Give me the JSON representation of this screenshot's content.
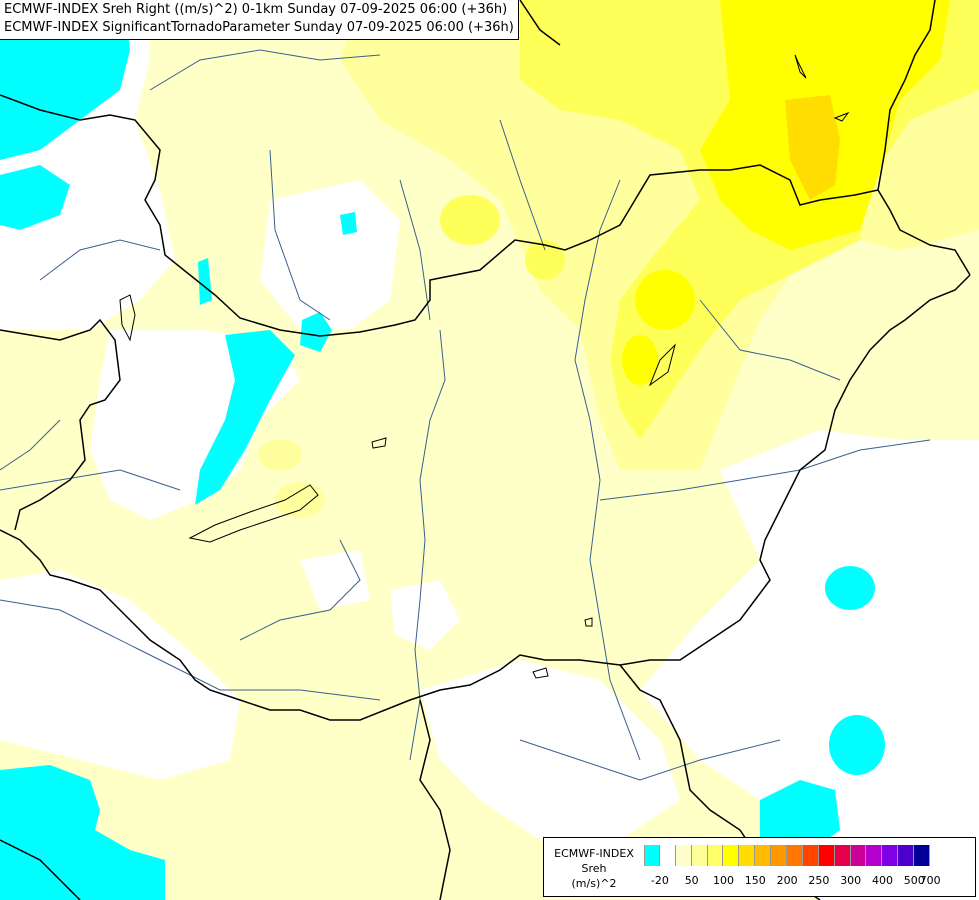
{
  "titles": {
    "line1": "ECMWF-INDEX Sreh Right ((m/s)^2) 0-1km Sunday 07-09-2025 06:00 (+36h)",
    "line2": "ECMWF-INDEX SignificantTornadoParameter Sunday 07-09-2025 06:00 (+36h)"
  },
  "legend": {
    "title_line1": "ECMWF-INDEX",
    "title_line2": "Sreh",
    "title_line3": "(m/s)^2",
    "colors": [
      "#00ffff",
      "#ffffff",
      "#ffffcc",
      "#ffff99",
      "#ffff66",
      "#ffff00",
      "#ffdd00",
      "#ffbb00",
      "#ff9900",
      "#ff7700",
      "#ff4400",
      "#ff0000",
      "#e6004c",
      "#cc0099",
      "#b300cc",
      "#8000e6",
      "#4d00cc",
      "#000099"
    ],
    "tick_labels": [
      "-20",
      "50",
      "100",
      "150",
      "200",
      "250",
      "300",
      "400",
      "500",
      "700"
    ]
  },
  "palette": {
    "cyan": "#00ffff",
    "white": "#ffffff",
    "pale_yellow": "#ffffc8",
    "light_yellow": "#ffff9e",
    "mid_yellow": "#ffff5a",
    "yellow": "#ffff00",
    "gold": "#ffdd00",
    "border_line": "#000000",
    "river_line": "#3a5f8f"
  }
}
